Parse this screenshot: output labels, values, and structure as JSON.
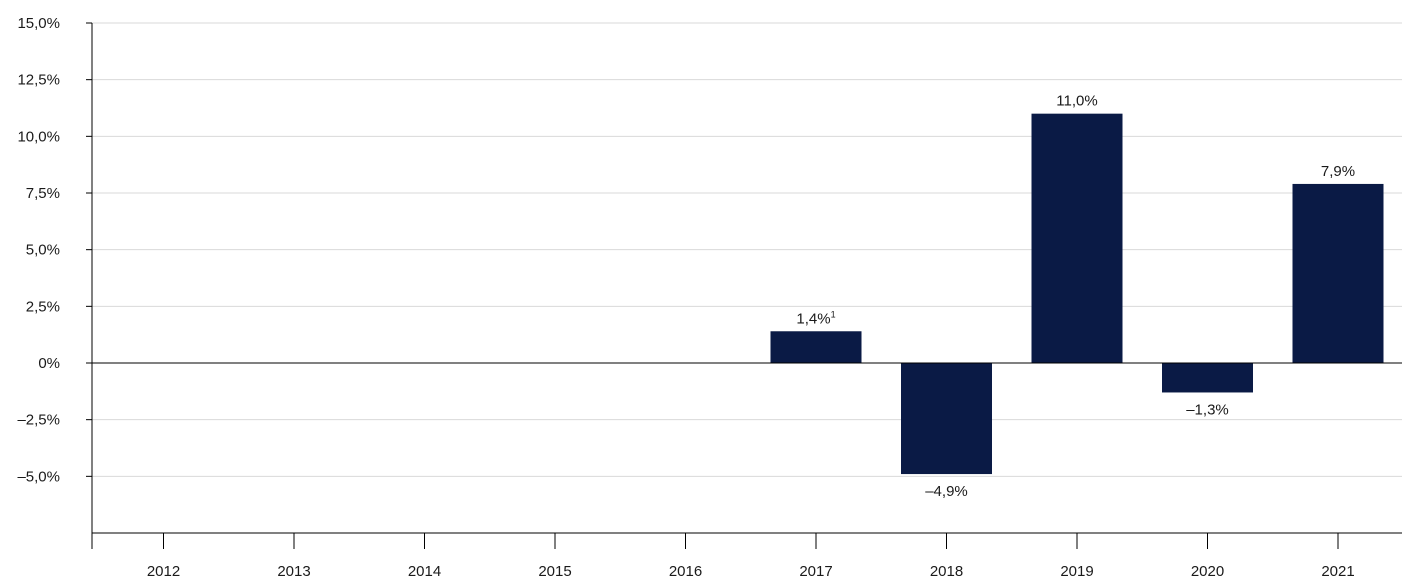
{
  "chart_data": {
    "type": "bar",
    "categories": [
      "2012",
      "2013",
      "2014",
      "2015",
      "2016",
      "2017",
      "2018",
      "2019",
      "2020",
      "2021"
    ],
    "values": [
      null,
      null,
      null,
      null,
      null,
      1.4,
      -4.9,
      11.0,
      -1.3,
      7.9
    ],
    "data_labels": [
      "",
      "",
      "",
      "",
      "",
      "1,4%",
      "–4,9%",
      "11,0%",
      "–1,3%",
      "7,9%"
    ],
    "data_label_notes": [
      "",
      "",
      "",
      "",
      "",
      "1",
      "",
      "",
      "",
      ""
    ],
    "y_ticks": [
      15,
      12.5,
      10,
      7.5,
      5,
      2.5,
      0,
      -2.5,
      -5
    ],
    "y_tick_labels": [
      "15,0%",
      "12,5%",
      "10,0%",
      "7,5%",
      "5,0%",
      "2,5%",
      "0%",
      "–2,5%",
      "–5,0%"
    ],
    "ylim": [
      -7.5,
      15
    ],
    "grid": true,
    "legend": "none",
    "bar_color": "#0a1a45"
  }
}
